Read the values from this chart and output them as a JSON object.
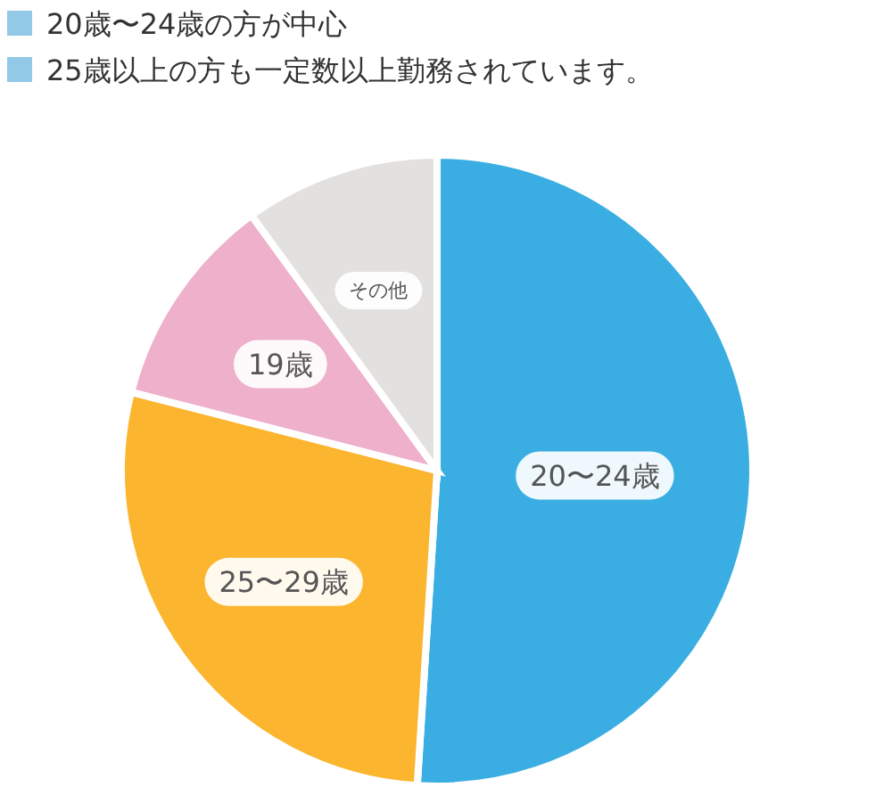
{
  "chart_data": {
    "type": "pie",
    "categories": [
      "20〜24歳",
      "25〜29歳",
      "19歳",
      "その他"
    ],
    "values": [
      51,
      28,
      11,
      10
    ],
    "colors": [
      "#3aaee2",
      "#fbb52f",
      "#eeb0cb",
      "#e3e1df"
    ],
    "annotations": [
      "20歳〜24歳の方が中心",
      "25歳以上の方も一定数以上勤務されています。"
    ],
    "legend": false
  }
}
